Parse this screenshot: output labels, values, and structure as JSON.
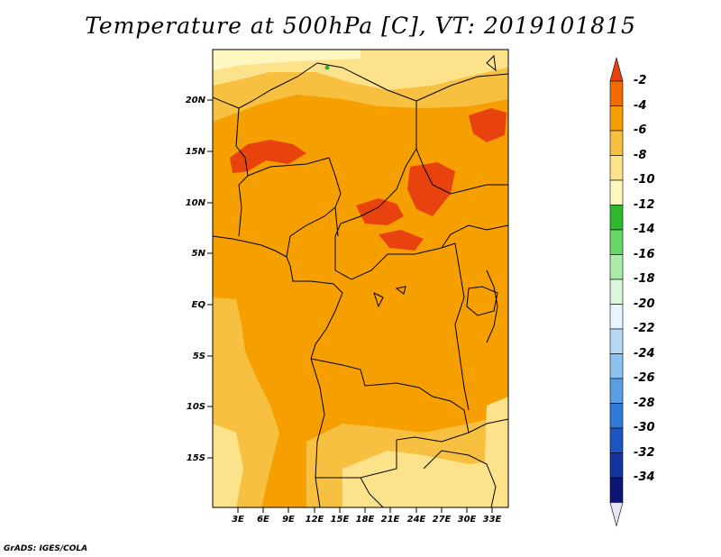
{
  "title": "Temperature at 500hPa [C], VT: 2019101815",
  "credit": "GrADS: IGES/COLA",
  "map": {
    "lat_ticks": [
      "20N",
      "15N",
      "10N",
      "5N",
      "EQ",
      "5S",
      "10S",
      "15S"
    ],
    "lon_ticks": [
      "3E",
      "6E",
      "9E",
      "12E",
      "15E",
      "18E",
      "21E",
      "24E",
      "27E",
      "30E",
      "33E"
    ]
  },
  "colorbar": {
    "labels": [
      "-2",
      "-4",
      "-6",
      "-8",
      "-10",
      "-12",
      "-14",
      "-16",
      "-18",
      "-20",
      "-22",
      "-24",
      "-26",
      "-28",
      "-30",
      "-32",
      "-34"
    ],
    "colors": [
      "#e8420f",
      "#f06c00",
      "#f5a000",
      "#f8c040",
      "#fce28a",
      "#fff7c0",
      "#2eb82e",
      "#66d666",
      "#a8eca8",
      "#d9f7d9",
      "#e6f5ff",
      "#b5d9f5",
      "#8cc2ef",
      "#5a9fe6",
      "#2f7ad8",
      "#1f55c2",
      "#1435a0",
      "#0b1676",
      "#e6e6f2"
    ]
  }
}
